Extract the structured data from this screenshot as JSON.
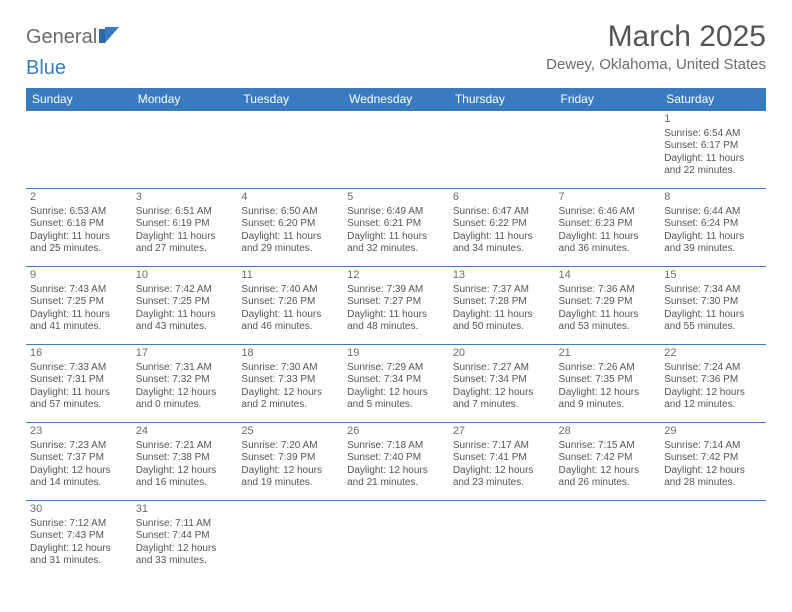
{
  "brand": {
    "part1": "General",
    "part2": "Blue"
  },
  "title": "March 2025",
  "location": "Dewey, Oklahoma, United States",
  "colors": {
    "header_bg": "#3a7bbf",
    "header_text": "#ffffff",
    "cell_border": "#3a7bbf",
    "body_text": "#555555",
    "muted_text": "#6b6b6b",
    "page_bg": "#ffffff"
  },
  "typography": {
    "title_fontsize": 30,
    "location_fontsize": 15,
    "dayheader_fontsize": 12,
    "cell_fontsize": 10,
    "daynum_fontsize": 11
  },
  "layout": {
    "columns": 7,
    "rows": 6
  },
  "day_headers": [
    "Sunday",
    "Monday",
    "Tuesday",
    "Wednesday",
    "Thursday",
    "Friday",
    "Saturday"
  ],
  "weeks": [
    [
      null,
      null,
      null,
      null,
      null,
      null,
      {
        "n": "1",
        "sunrise": "Sunrise: 6:54 AM",
        "sunset": "Sunset: 6:17 PM",
        "daylight": "Daylight: 11 hours and 22 minutes."
      }
    ],
    [
      {
        "n": "2",
        "sunrise": "Sunrise: 6:53 AM",
        "sunset": "Sunset: 6:18 PM",
        "daylight": "Daylight: 11 hours and 25 minutes."
      },
      {
        "n": "3",
        "sunrise": "Sunrise: 6:51 AM",
        "sunset": "Sunset: 6:19 PM",
        "daylight": "Daylight: 11 hours and 27 minutes."
      },
      {
        "n": "4",
        "sunrise": "Sunrise: 6:50 AM",
        "sunset": "Sunset: 6:20 PM",
        "daylight": "Daylight: 11 hours and 29 minutes."
      },
      {
        "n": "5",
        "sunrise": "Sunrise: 6:49 AM",
        "sunset": "Sunset: 6:21 PM",
        "daylight": "Daylight: 11 hours and 32 minutes."
      },
      {
        "n": "6",
        "sunrise": "Sunrise: 6:47 AM",
        "sunset": "Sunset: 6:22 PM",
        "daylight": "Daylight: 11 hours and 34 minutes."
      },
      {
        "n": "7",
        "sunrise": "Sunrise: 6:46 AM",
        "sunset": "Sunset: 6:23 PM",
        "daylight": "Daylight: 11 hours and 36 minutes."
      },
      {
        "n": "8",
        "sunrise": "Sunrise: 6:44 AM",
        "sunset": "Sunset: 6:24 PM",
        "daylight": "Daylight: 11 hours and 39 minutes."
      }
    ],
    [
      {
        "n": "9",
        "sunrise": "Sunrise: 7:43 AM",
        "sunset": "Sunset: 7:25 PM",
        "daylight": "Daylight: 11 hours and 41 minutes."
      },
      {
        "n": "10",
        "sunrise": "Sunrise: 7:42 AM",
        "sunset": "Sunset: 7:25 PM",
        "daylight": "Daylight: 11 hours and 43 minutes."
      },
      {
        "n": "11",
        "sunrise": "Sunrise: 7:40 AM",
        "sunset": "Sunset: 7:26 PM",
        "daylight": "Daylight: 11 hours and 46 minutes."
      },
      {
        "n": "12",
        "sunrise": "Sunrise: 7:39 AM",
        "sunset": "Sunset: 7:27 PM",
        "daylight": "Daylight: 11 hours and 48 minutes."
      },
      {
        "n": "13",
        "sunrise": "Sunrise: 7:37 AM",
        "sunset": "Sunset: 7:28 PM",
        "daylight": "Daylight: 11 hours and 50 minutes."
      },
      {
        "n": "14",
        "sunrise": "Sunrise: 7:36 AM",
        "sunset": "Sunset: 7:29 PM",
        "daylight": "Daylight: 11 hours and 53 minutes."
      },
      {
        "n": "15",
        "sunrise": "Sunrise: 7:34 AM",
        "sunset": "Sunset: 7:30 PM",
        "daylight": "Daylight: 11 hours and 55 minutes."
      }
    ],
    [
      {
        "n": "16",
        "sunrise": "Sunrise: 7:33 AM",
        "sunset": "Sunset: 7:31 PM",
        "daylight": "Daylight: 11 hours and 57 minutes."
      },
      {
        "n": "17",
        "sunrise": "Sunrise: 7:31 AM",
        "sunset": "Sunset: 7:32 PM",
        "daylight": "Daylight: 12 hours and 0 minutes."
      },
      {
        "n": "18",
        "sunrise": "Sunrise: 7:30 AM",
        "sunset": "Sunset: 7:33 PM",
        "daylight": "Daylight: 12 hours and 2 minutes."
      },
      {
        "n": "19",
        "sunrise": "Sunrise: 7:29 AM",
        "sunset": "Sunset: 7:34 PM",
        "daylight": "Daylight: 12 hours and 5 minutes."
      },
      {
        "n": "20",
        "sunrise": "Sunrise: 7:27 AM",
        "sunset": "Sunset: 7:34 PM",
        "daylight": "Daylight: 12 hours and 7 minutes."
      },
      {
        "n": "21",
        "sunrise": "Sunrise: 7:26 AM",
        "sunset": "Sunset: 7:35 PM",
        "daylight": "Daylight: 12 hours and 9 minutes."
      },
      {
        "n": "22",
        "sunrise": "Sunrise: 7:24 AM",
        "sunset": "Sunset: 7:36 PM",
        "daylight": "Daylight: 12 hours and 12 minutes."
      }
    ],
    [
      {
        "n": "23",
        "sunrise": "Sunrise: 7:23 AM",
        "sunset": "Sunset: 7:37 PM",
        "daylight": "Daylight: 12 hours and 14 minutes."
      },
      {
        "n": "24",
        "sunrise": "Sunrise: 7:21 AM",
        "sunset": "Sunset: 7:38 PM",
        "daylight": "Daylight: 12 hours and 16 minutes."
      },
      {
        "n": "25",
        "sunrise": "Sunrise: 7:20 AM",
        "sunset": "Sunset: 7:39 PM",
        "daylight": "Daylight: 12 hours and 19 minutes."
      },
      {
        "n": "26",
        "sunrise": "Sunrise: 7:18 AM",
        "sunset": "Sunset: 7:40 PM",
        "daylight": "Daylight: 12 hours and 21 minutes."
      },
      {
        "n": "27",
        "sunrise": "Sunrise: 7:17 AM",
        "sunset": "Sunset: 7:41 PM",
        "daylight": "Daylight: 12 hours and 23 minutes."
      },
      {
        "n": "28",
        "sunrise": "Sunrise: 7:15 AM",
        "sunset": "Sunset: 7:42 PM",
        "daylight": "Daylight: 12 hours and 26 minutes."
      },
      {
        "n": "29",
        "sunrise": "Sunrise: 7:14 AM",
        "sunset": "Sunset: 7:42 PM",
        "daylight": "Daylight: 12 hours and 28 minutes."
      }
    ],
    [
      {
        "n": "30",
        "sunrise": "Sunrise: 7:12 AM",
        "sunset": "Sunset: 7:43 PM",
        "daylight": "Daylight: 12 hours and 31 minutes."
      },
      {
        "n": "31",
        "sunrise": "Sunrise: 7:11 AM",
        "sunset": "Sunset: 7:44 PM",
        "daylight": "Daylight: 12 hours and 33 minutes."
      },
      null,
      null,
      null,
      null,
      null
    ]
  ]
}
